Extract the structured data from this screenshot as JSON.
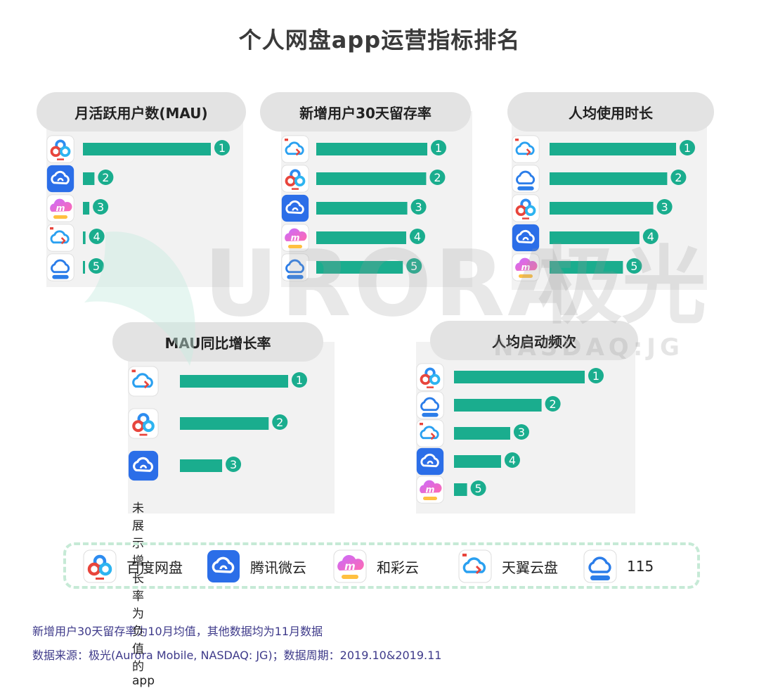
{
  "title": "个人网盘app运营指标排名",
  "colors": {
    "bar": "#1aad8e",
    "rank_badge": "#1aad8e",
    "panel_bg": "#f2f2f2",
    "pill_bg": "#e3e3e3",
    "legend_border": "#c6ead6",
    "footnote_text": "#3e3a8a"
  },
  "apps": {
    "baidu": {
      "name": "百度网盘",
      "icon": "baidu-netdisk-icon"
    },
    "tencent": {
      "name": "腾讯微云",
      "icon": "tencent-weiyun-icon"
    },
    "hecai": {
      "name": "和彩云",
      "icon": "hecaiyun-icon"
    },
    "tianyi": {
      "name": "天翼云盘",
      "icon": "tianyi-cloud-icon"
    },
    "p115": {
      "name": "115",
      "icon": "115-cloud-icon"
    }
  },
  "legend_order": [
    "baidu",
    "tencent",
    "hecai",
    "tianyi",
    "p115"
  ],
  "chart_data": [
    {
      "type": "bar",
      "title": "月活跃用户数(MAU)",
      "categories": [
        "baidu",
        "tencent",
        "hecai",
        "tianyi",
        "p115"
      ],
      "ranks": [
        "1",
        "2",
        "3",
        "4",
        "5"
      ],
      "values": [
        100,
        9,
        5,
        2,
        1
      ]
    },
    {
      "type": "bar",
      "title": "新增用户30天留存率",
      "categories": [
        "tianyi",
        "baidu",
        "tencent",
        "hecai",
        "p115"
      ],
      "ranks": [
        "1",
        "2",
        "3",
        "4",
        "5"
      ],
      "values": [
        100,
        99,
        82,
        81,
        78
      ]
    },
    {
      "type": "bar",
      "title": "人均使用时长",
      "categories": [
        "tianyi",
        "p115",
        "baidu",
        "tencent",
        "hecai"
      ],
      "ranks": [
        "1",
        "2",
        "3",
        "4",
        "5"
      ],
      "values": [
        100,
        93,
        82,
        71,
        58
      ]
    },
    {
      "type": "bar",
      "title": "MAU同比增长率",
      "categories": [
        "tianyi",
        "baidu",
        "tencent"
      ],
      "ranks": [
        "1",
        "2",
        "3"
      ],
      "values": [
        100,
        82,
        39
      ],
      "note": "未展示增长率为负值的app"
    },
    {
      "type": "bar",
      "title": "人均启动频次",
      "categories": [
        "baidu",
        "p115",
        "tianyi",
        "tencent",
        "hecai"
      ],
      "ranks": [
        "1",
        "2",
        "3",
        "4",
        "5"
      ],
      "values": [
        100,
        67,
        43,
        36,
        10
      ]
    }
  ],
  "footnotes": [
    "新增用户30天留存率为10月均值，其他数据均为11月数据",
    "数据来源：极光(Aurora Mobile, NASDAQ: JG)；数据周期：2019.10&2019.11"
  ],
  "watermark": {
    "brand": "URORA",
    "cn": "极光",
    "sub": "NASDAQ:JG"
  }
}
